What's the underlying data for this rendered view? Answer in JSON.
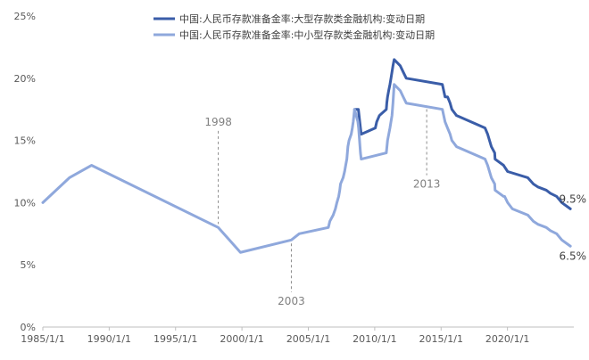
{
  "chart_data": {
    "type": "line",
    "title": "",
    "xlabel": "",
    "ylabel": "",
    "ylim": [
      0,
      25
    ],
    "yticks": [
      0,
      5,
      10,
      15,
      20,
      25
    ],
    "ytick_labels": [
      "0%",
      "5%",
      "10%",
      "15%",
      "20%",
      "25%"
    ],
    "xlim": [
      "1985-01-01",
      "2024-12-31"
    ],
    "xticks": [
      "1985-01-01",
      "1990-01-01",
      "1995-01-01",
      "2000-01-01",
      "2005-01-01",
      "2010-01-01",
      "2015-01-01",
      "2020-01-01"
    ],
    "xtick_labels": [
      "1985/1/1",
      "1990/1/1",
      "1995/1/1",
      "2000/1/1",
      "2005/1/1",
      "2010/1/1",
      "2015/1/1",
      "2020/1/1"
    ],
    "grid": false,
    "legend_position": "top",
    "series": [
      {
        "name": "中国:人民币存款准备金率:大型存款类金融机构:变动日期",
        "color": "#3A5DA8",
        "points": [
          [
            "2008-06-25",
            17.5
          ],
          [
            "2008-10-08",
            17.5
          ],
          [
            "2008-12-05",
            16.0
          ],
          [
            "2008-12-25",
            15.5
          ],
          [
            "2010-01-18",
            16.0
          ],
          [
            "2010-02-25",
            16.5
          ],
          [
            "2010-05-10",
            17.0
          ],
          [
            "2010-11-16",
            17.5
          ],
          [
            "2010-11-29",
            18.0
          ],
          [
            "2010-12-20",
            18.5
          ],
          [
            "2011-01-20",
            19.0
          ],
          [
            "2011-02-24",
            19.5
          ],
          [
            "2011-03-25",
            20.0
          ],
          [
            "2011-04-21",
            20.5
          ],
          [
            "2011-05-18",
            21.0
          ],
          [
            "2011-06-20",
            21.5
          ],
          [
            "2011-12-05",
            21.0
          ],
          [
            "2012-02-24",
            20.5
          ],
          [
            "2012-05-18",
            20.0
          ],
          [
            "2015-02-05",
            19.5
          ],
          [
            "2015-04-20",
            18.5
          ],
          [
            "2015-06-28",
            18.5
          ],
          [
            "2015-09-06",
            18.0
          ],
          [
            "2015-10-24",
            17.5
          ],
          [
            "2016-03-01",
            17.0
          ],
          [
            "2018-04-25",
            16.0
          ],
          [
            "2018-07-05",
            15.5
          ],
          [
            "2018-10-15",
            14.5
          ],
          [
            "2019-01-15",
            14.0
          ],
          [
            "2019-01-25",
            13.5
          ],
          [
            "2019-09-16",
            13.0
          ],
          [
            "2020-01-06",
            12.5
          ],
          [
            "2021-07-15",
            12.0
          ],
          [
            "2021-12-15",
            11.5
          ],
          [
            "2022-04-25",
            11.25
          ],
          [
            "2022-12-05",
            11.0
          ],
          [
            "2023-03-27",
            10.75
          ],
          [
            "2023-09-15",
            10.5
          ],
          [
            "2024-02-05",
            10.0
          ],
          [
            "2024-09-27",
            9.5
          ]
        ]
      },
      {
        "name": "中国:人民币存款准备金率:中小型存款类金融机构:变动日期",
        "color": "#8FA8DC",
        "points": [
          [
            "1985-01-01",
            10.0
          ],
          [
            "1987-01-01",
            12.0
          ],
          [
            "1988-09-01",
            13.0
          ],
          [
            "1998-03-21",
            8.0
          ],
          [
            "1999-11-21",
            6.0
          ],
          [
            "2003-09-21",
            7.0
          ],
          [
            "2004-04-25",
            7.5
          ],
          [
            "2006-07-05",
            8.0
          ],
          [
            "2006-08-15",
            8.5
          ],
          [
            "2006-11-15",
            9.0
          ],
          [
            "2007-01-15",
            9.5
          ],
          [
            "2007-02-25",
            10.0
          ],
          [
            "2007-04-16",
            10.5
          ],
          [
            "2007-05-15",
            11.0
          ],
          [
            "2007-06-05",
            11.5
          ],
          [
            "2007-08-15",
            12.0
          ],
          [
            "2007-09-25",
            12.5
          ],
          [
            "2007-10-25",
            13.0
          ],
          [
            "2007-11-26",
            13.5
          ],
          [
            "2007-12-25",
            14.5
          ],
          [
            "2008-01-25",
            15.0
          ],
          [
            "2008-03-25",
            15.5
          ],
          [
            "2008-04-25",
            16.0
          ],
          [
            "2008-05-20",
            16.5
          ],
          [
            "2008-06-25",
            17.5
          ],
          [
            "2008-09-25",
            16.5
          ],
          [
            "2008-10-15",
            16.0
          ],
          [
            "2008-12-05",
            14.0
          ],
          [
            "2008-12-25",
            13.5
          ],
          [
            "2010-11-16",
            14.0
          ],
          [
            "2010-12-20",
            15.0
          ],
          [
            "2011-02-24",
            16.0
          ],
          [
            "2011-04-21",
            17.0
          ],
          [
            "2011-05-18",
            18.0
          ],
          [
            "2011-06-20",
            19.5
          ],
          [
            "2011-12-05",
            19.0
          ],
          [
            "2012-02-24",
            18.5
          ],
          [
            "2012-05-18",
            18.0
          ],
          [
            "2015-02-05",
            17.5
          ],
          [
            "2015-04-20",
            16.5
          ],
          [
            "2015-06-28",
            16.0
          ],
          [
            "2015-09-06",
            15.5
          ],
          [
            "2015-10-24",
            15.0
          ],
          [
            "2016-03-01",
            14.5
          ],
          [
            "2018-04-25",
            13.5
          ],
          [
            "2018-07-05",
            13.0
          ],
          [
            "2018-10-15",
            12.0
          ],
          [
            "2019-01-15",
            11.5
          ],
          [
            "2019-01-25",
            11.0
          ],
          [
            "2019-09-16",
            10.5
          ],
          [
            "2019-10-15",
            10.5
          ],
          [
            "2020-01-06",
            10.0
          ],
          [
            "2020-05-15",
            9.5
          ],
          [
            "2021-07-15",
            9.0
          ],
          [
            "2021-12-15",
            8.5
          ],
          [
            "2022-04-25",
            8.25
          ],
          [
            "2022-12-05",
            8.0
          ],
          [
            "2023-03-27",
            7.75
          ],
          [
            "2023-09-15",
            7.5
          ],
          [
            "2024-02-05",
            7.0
          ],
          [
            "2024-09-27",
            6.5
          ]
        ]
      }
    ],
    "annotations": [
      {
        "label": "1998",
        "date": "1998-03-21",
        "value": 8.0,
        "side": "above",
        "text_value": 16.2
      },
      {
        "label": "2003",
        "date": "2003-09-21",
        "value": 7.0,
        "side": "below",
        "text_value": 1.8
      },
      {
        "label": "2013",
        "date": "2013-12-01",
        "value": 17.8,
        "side": "below",
        "text_value": 11.2
      }
    ],
    "end_labels": [
      {
        "label": "9.5%",
        "series": 0,
        "value": 9.5
      },
      {
        "label": "6.5%",
        "series": 1,
        "value": 6.5
      }
    ]
  }
}
